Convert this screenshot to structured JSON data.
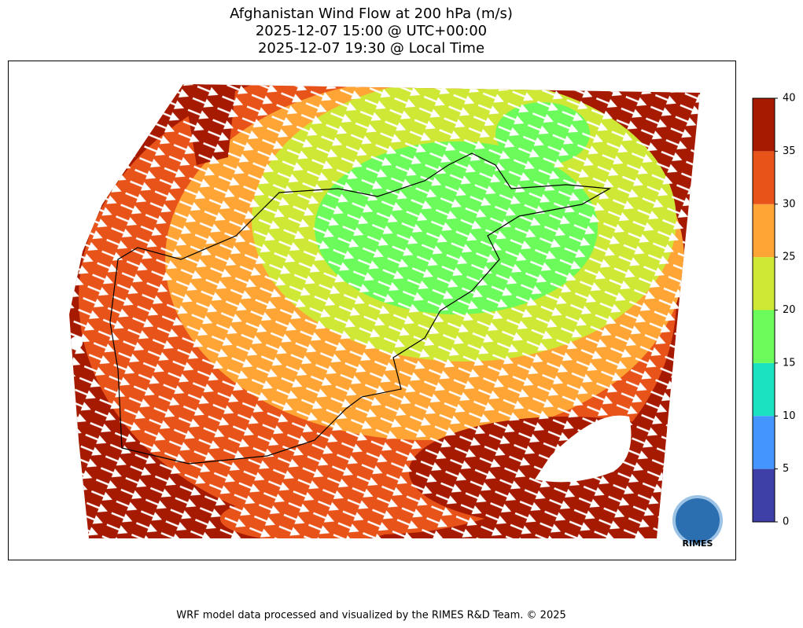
{
  "title": [
    "Afghanistan Wind Flow at 200 hPa (m/s)",
    "2025-12-07 15:00 @ UTC+00:00",
    "2025-12-07 19:30 @ Local Time"
  ],
  "colorbar": {
    "lim": [
      0,
      40
    ],
    "ticks": [
      0,
      5,
      10,
      15,
      20,
      25,
      30,
      35,
      40
    ],
    "colors": [
      "#3f3fa8",
      "#4496ff",
      "#1be2c1",
      "#6bfb5b",
      "#cfe835",
      "#ffa535",
      "#e8531a",
      "#a51a00"
    ]
  },
  "logo": "RIMES",
  "footer": "WRF model data processed and visualized by the RIMES R&D Team. © 2025"
}
